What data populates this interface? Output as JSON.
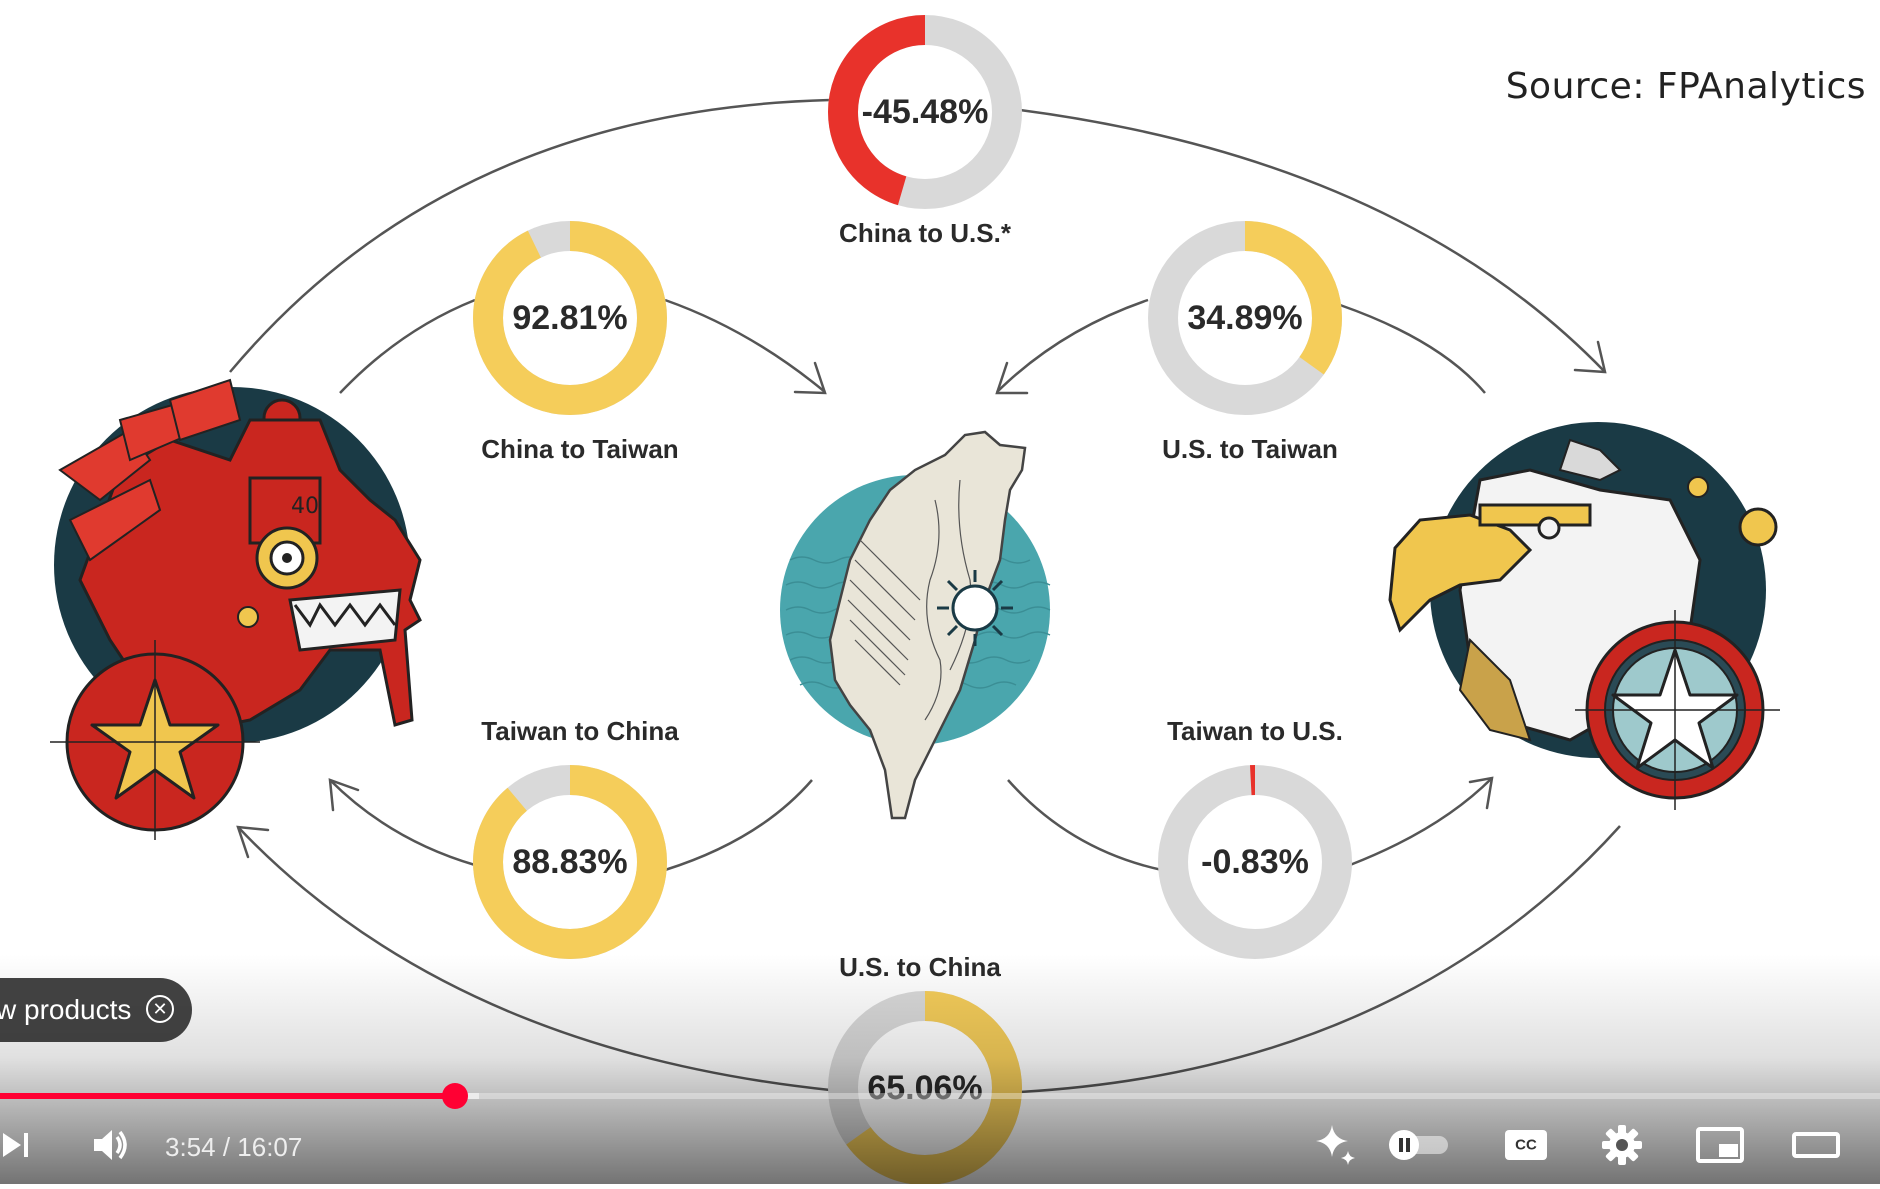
{
  "video": {
    "source_text": "Source: FPAnalytics",
    "flows": [
      {
        "id": "china-to-us",
        "label": "China to U.S.*",
        "value": -45.48,
        "display": "-45.48%"
      },
      {
        "id": "china-to-taiwan",
        "label": "China to Taiwan",
        "value": 92.81,
        "display": "92.81%"
      },
      {
        "id": "us-to-taiwan",
        "label": "U.S. to Taiwan",
        "value": 34.89,
        "display": "34.89%"
      },
      {
        "id": "taiwan-to-china",
        "label": "Taiwan to China",
        "value": 88.83,
        "display": "88.83%"
      },
      {
        "id": "taiwan-to-us",
        "label": "Taiwan to U.S.",
        "value": -0.83,
        "display": "-0.83%"
      },
      {
        "id": "us-to-china",
        "label": "U.S. to China",
        "value": 65.06,
        "display": "65.06%"
      }
    ],
    "colors": {
      "positive": "#f5cd5a",
      "negative": "#e8322b",
      "remainder": "#d9d9d9",
      "ocean": "#4aa6ad",
      "navy": "#1a3a45"
    }
  },
  "player": {
    "products_chip_label": "w products",
    "current_time": "3:54",
    "separator": " / ",
    "duration": "16:07",
    "played_fraction": 0.242,
    "buffered_fraction": 0.255,
    "accent_color": "#ff0033",
    "icons": [
      "next-icon",
      "volume-icon",
      "sparkle-icon",
      "autoplay-toggle-icon",
      "captions-icon",
      "settings-icon",
      "miniplayer-icon",
      "theater-icon"
    ],
    "captions_label": "CC"
  }
}
